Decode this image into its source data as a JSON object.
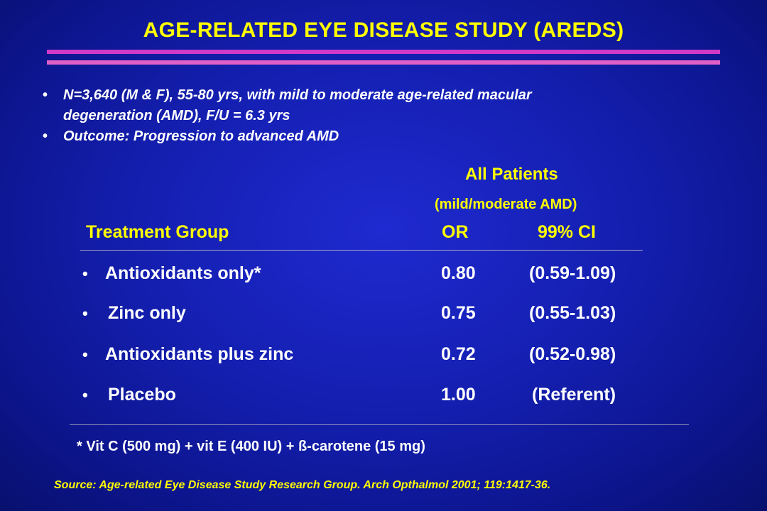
{
  "title": "AGE-RELATED EYE DISEASE STUDY (AREDS)",
  "colors": {
    "background": "#141fb0",
    "title": "#ffff00",
    "rule_upper": "#d03ac8",
    "rule_lower": "#e060c8",
    "text": "#ffffff",
    "heading": "#ffff00"
  },
  "bullets": [
    {
      "marker": "•",
      "lines": [
        "N=3,640 (M & F), 55-80 yrs, with mild to moderate age-related macular",
        "degeneration (AMD), F/U = 6.3 yrs"
      ]
    },
    {
      "marker": "•",
      "lines": [
        "Outcome:  Progression to advanced AMD"
      ]
    }
  ],
  "table": {
    "group_header": "All Patients",
    "group_subheader": "(mild/moderate AMD)",
    "columns": {
      "group": "Treatment Group",
      "or": "OR",
      "ci": "99% CI"
    },
    "rows": [
      {
        "marker": "•",
        "group": "Antioxidants only*",
        "or": "0.80",
        "ci": "(0.59-1.09)"
      },
      {
        "marker": "•",
        "group": "Zinc only",
        "or": "0.75",
        "ci": "(0.55-1.03)"
      },
      {
        "marker": "•",
        "group": "Antioxidants plus zinc",
        "or": "0.72",
        "ci": "(0.52-0.98)"
      },
      {
        "marker": "•",
        "group": "Placebo",
        "or": "1.00",
        "ci": "(Referent)"
      }
    ]
  },
  "footnote": "* Vit C (500 mg) + vit E (400 IU) + ß-carotene (15 mg)",
  "source": "Source:  Age-related Eye Disease Study Research Group.  Arch Opthalmol 2001; 119:1417-36."
}
